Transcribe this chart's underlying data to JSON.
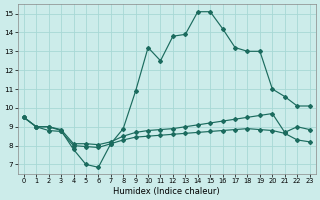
{
  "xlabel": "Humidex (Indice chaleur)",
  "xlim": [
    -0.5,
    23.5
  ],
  "ylim": [
    6.5,
    15.5
  ],
  "xticks": [
    0,
    1,
    2,
    3,
    4,
    5,
    6,
    7,
    8,
    9,
    10,
    11,
    12,
    13,
    14,
    15,
    16,
    17,
    18,
    19,
    20,
    21,
    22,
    23
  ],
  "yticks": [
    7,
    8,
    9,
    10,
    11,
    12,
    13,
    14,
    15
  ],
  "background_color": "#ccecea",
  "grid_color": "#a8d8d5",
  "line_color": "#1b6b5e",
  "line1_x": [
    0,
    1,
    2,
    3,
    4,
    5,
    6,
    7,
    8,
    9,
    10,
    11,
    12,
    13,
    14,
    15,
    16,
    17,
    18,
    19,
    20,
    21,
    22,
    23
  ],
  "line1_y": [
    9.5,
    9.0,
    9.0,
    8.8,
    7.8,
    7.0,
    6.85,
    8.1,
    8.9,
    10.9,
    13.2,
    12.5,
    13.8,
    13.9,
    15.1,
    15.1,
    14.2,
    13.2,
    13.0,
    13.0,
    11.0,
    10.6,
    10.1,
    10.1
  ],
  "line2_x": [
    0,
    1,
    2,
    3,
    4,
    5,
    6,
    7,
    8,
    9,
    10,
    11,
    12,
    13,
    14,
    15,
    16,
    17,
    18,
    19,
    20,
    21,
    22,
    23
  ],
  "line2_y": [
    9.5,
    9.0,
    9.0,
    8.85,
    8.1,
    8.1,
    8.05,
    8.2,
    8.5,
    8.7,
    8.8,
    8.85,
    8.9,
    9.0,
    9.1,
    9.2,
    9.3,
    9.4,
    9.5,
    9.6,
    9.7,
    8.7,
    9.0,
    8.85
  ],
  "line3_x": [
    0,
    1,
    2,
    3,
    4,
    5,
    6,
    7,
    8,
    9,
    10,
    11,
    12,
    13,
    14,
    15,
    16,
    17,
    18,
    19,
    20,
    21,
    22,
    23
  ],
  "line3_y": [
    9.5,
    9.0,
    8.8,
    8.75,
    8.0,
    7.95,
    7.9,
    8.1,
    8.3,
    8.45,
    8.5,
    8.55,
    8.6,
    8.65,
    8.7,
    8.75,
    8.8,
    8.85,
    8.9,
    8.85,
    8.8,
    8.65,
    8.3,
    8.2
  ]
}
